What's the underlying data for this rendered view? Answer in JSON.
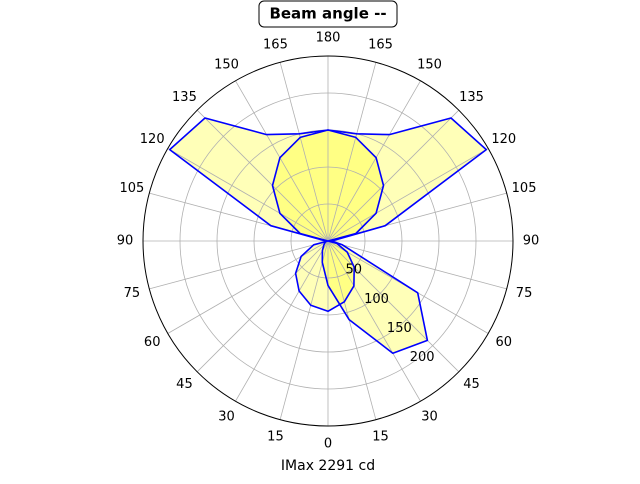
{
  "chart_data": {
    "type": "polar",
    "title": "Beam angle --",
    "xlabel": "IMax 2291 cd",
    "rlim": [
      0,
      250
    ],
    "rticks": [
      50,
      100,
      150,
      200
    ],
    "thetaticks": [
      0,
      15,
      30,
      45,
      60,
      75,
      90,
      105,
      120,
      135,
      150,
      165,
      180,
      {
        "value": 195,
        "label": "165"
      },
      {
        "value": 210,
        "label": "150"
      },
      {
        "value": 225,
        "label": "135"
      },
      {
        "value": 240,
        "label": "120"
      },
      {
        "value": 255,
        "label": "105"
      },
      {
        "value": 270,
        "label": "90"
      },
      {
        "value": 285,
        "label": "75"
      },
      {
        "value": 300,
        "label": "60"
      },
      {
        "value": 315,
        "label": "45"
      },
      {
        "value": 330,
        "label": "30"
      },
      {
        "value": 345,
        "label": "15"
      }
    ],
    "grid": true,
    "series": [
      {
        "color": "#0000ff",
        "fill": "#ffff00",
        "theta": [
          0,
          15,
          30,
          45,
          60,
          75,
          90,
          105,
          120,
          135,
          150,
          165,
          180,
          195,
          210,
          225,
          240,
          255,
          270,
          285,
          300,
          315,
          330,
          345,
          360
        ],
        "values": [
          95,
          90,
          78,
          62,
          42,
          20,
          0,
          39,
          75,
          106,
          130,
          145,
          150,
          145,
          130,
          106,
          75,
          39,
          0,
          12,
          30,
          50,
          70,
          85,
          95
        ]
      },
      {
        "color": "#0000ff",
        "fill": "#ffff00",
        "theta": [
          0,
          15,
          30,
          45,
          60,
          75,
          90,
          105,
          120,
          135,
          150,
          165,
          180,
          195,
          210,
          225,
          240,
          255,
          270,
          285,
          300,
          315,
          330,
          345,
          360
        ],
        "values": [
          60,
          30,
          15,
          8,
          5,
          3,
          3,
          80,
          247,
          235,
          166,
          150,
          150,
          150,
          166,
          235,
          247,
          80,
          5,
          20,
          140,
          190,
          175,
          110,
          60
        ]
      }
    ]
  }
}
